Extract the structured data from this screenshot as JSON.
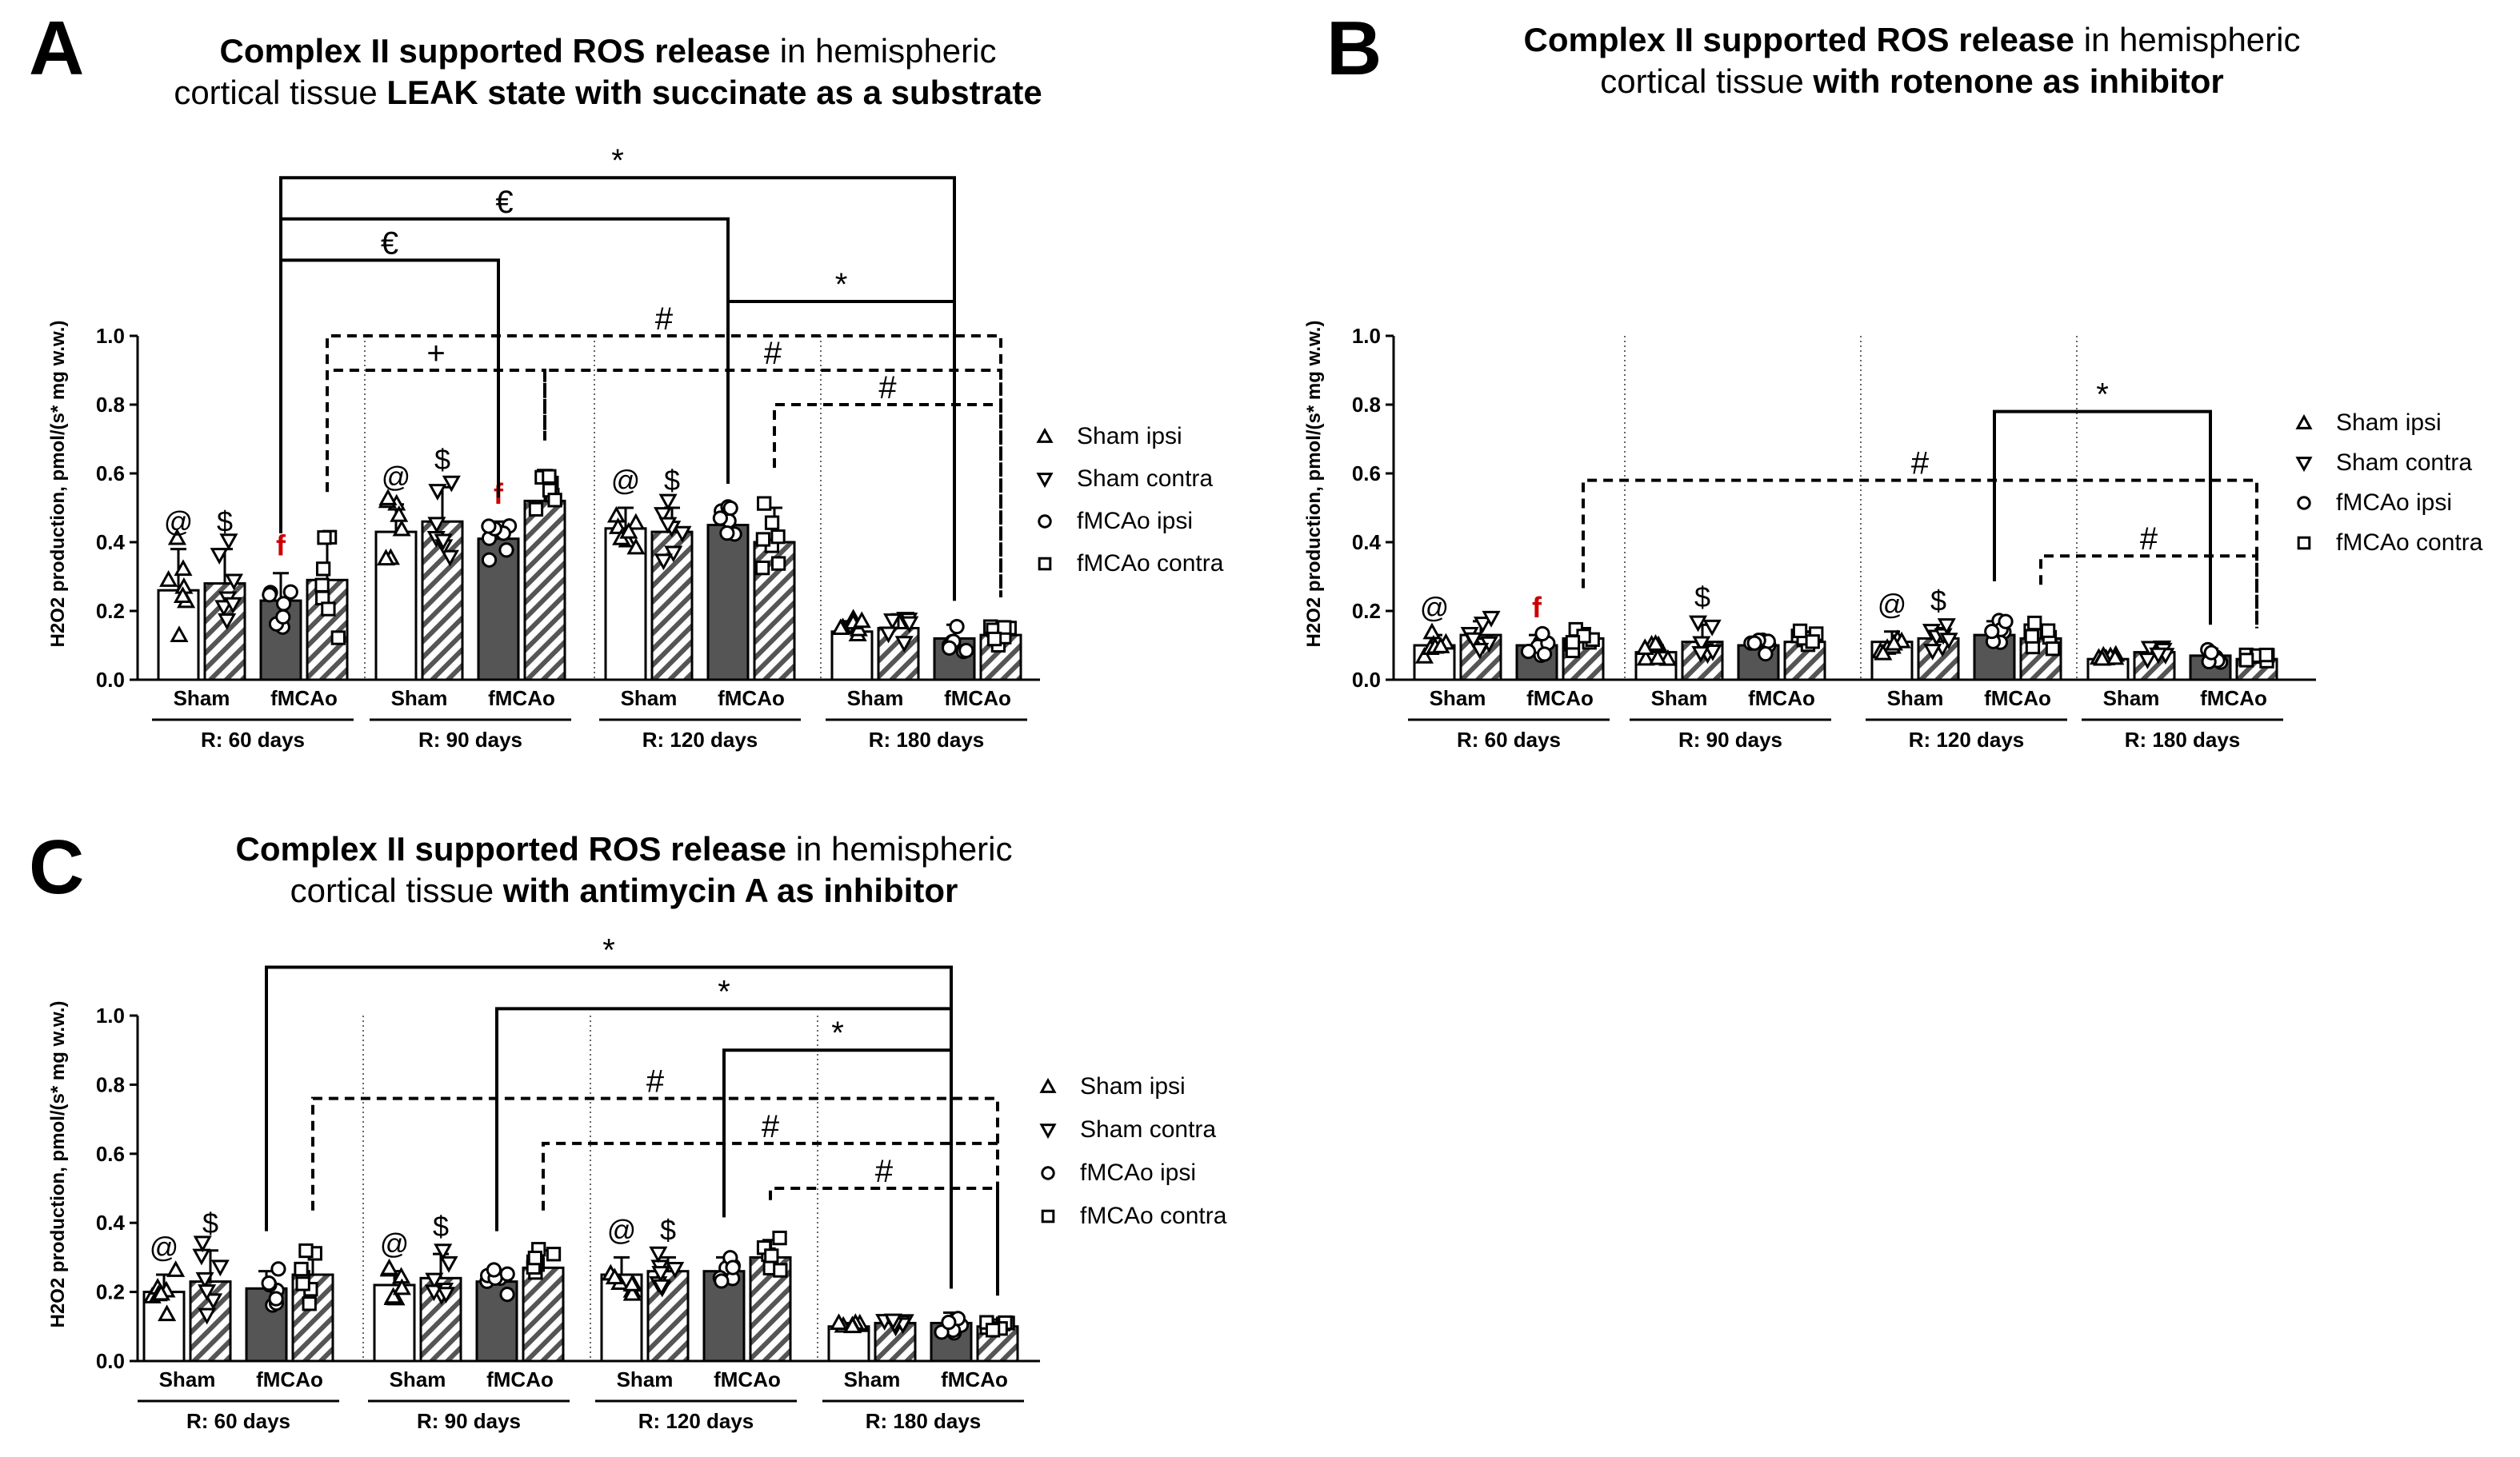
{
  "panel_titles": {
    "A": {
      "letter": "A",
      "bold1": "Complex II supported ROS release",
      "plain1": " in hemispheric",
      "plain2": "cortical tissue ",
      "bold2": "LEAK state with succinate as a substrate"
    },
    "B": {
      "letter": "B",
      "bold1": "Complex II supported ROS release",
      "plain1": " in hemispheric",
      "plain2": "cortical tissue ",
      "bold2": "with rotenone as inhibitor"
    },
    "C": {
      "letter": "C",
      "bold1": "Complex II supported ROS release",
      "plain1": " in hemispheric",
      "plain2": "cortical tissue ",
      "bold2": "with antimycin A as inhibitor"
    }
  },
  "colors": {
    "sham": "#ffffff",
    "fmcao": "#555555",
    "hatch": "#555555",
    "sig_red": "#cc0000",
    "stroke": "#000000"
  },
  "chart_data": [
    {
      "id": "A",
      "type": "bar",
      "title": "Complex II supported ROS release in hemispheric cortical tissue LEAK state with succinate as a substrate",
      "ylabel": "H2O2 production, pmol/(s* mg w.w.)",
      "ylim": [
        0,
        1.0
      ],
      "yticks": [
        "0.0",
        "0.2",
        "0.4",
        "0.6",
        "0.8",
        "1.0"
      ],
      "categories": [
        "R: 60 days",
        "R: 90 days",
        "R: 120 days",
        "R: 180 days"
      ],
      "sub_labels": [
        "Sham",
        "fMCAo"
      ],
      "legend": [
        "Sham ipsi",
        "Sham contra",
        "fMCAo ipsi",
        "fMCAo contra"
      ],
      "series": [
        {
          "name": "Sham ipsi",
          "values": [
            0.26,
            0.43,
            0.44,
            0.14
          ],
          "sd": [
            0.12,
            0.08,
            0.06,
            0.03
          ]
        },
        {
          "name": "Sham contra",
          "values": [
            0.28,
            0.46,
            0.43,
            0.15
          ],
          "sd": [
            0.1,
            0.1,
            0.07,
            0.04
          ]
        },
        {
          "name": "fMCAo ipsi",
          "values": [
            0.23,
            0.41,
            0.45,
            0.12
          ],
          "sd": [
            0.08,
            0.05,
            0.05,
            0.04
          ]
        },
        {
          "name": "fMCAo contra",
          "values": [
            0.29,
            0.52,
            0.4,
            0.13
          ],
          "sd": [
            0.14,
            0.09,
            0.1,
            0.04
          ]
        }
      ],
      "bar_marks": [
        {
          "g": 0,
          "s": 0,
          "text": "@"
        },
        {
          "g": 0,
          "s": 1,
          "text": "$"
        },
        {
          "g": 0,
          "s": 2,
          "text": "f",
          "red": true
        },
        {
          "g": 1,
          "s": 0,
          "text": "@"
        },
        {
          "g": 1,
          "s": 1,
          "text": "$"
        },
        {
          "g": 1,
          "s": 2,
          "text": "f",
          "red": true
        },
        {
          "g": 2,
          "s": 0,
          "text": "@"
        },
        {
          "g": 2,
          "s": 1,
          "text": "$"
        }
      ],
      "brackets": [
        {
          "from": [
            0,
            2
          ],
          "to": [
            3,
            2
          ],
          "level": 1.46,
          "symbol": "*",
          "dashed": false
        },
        {
          "from": [
            0,
            2
          ],
          "to": [
            2,
            2
          ],
          "level": 1.34,
          "symbol": "€",
          "dashed": false
        },
        {
          "from": [
            0,
            2
          ],
          "to": [
            1,
            2
          ],
          "level": 1.22,
          "symbol": "€",
          "dashed": false
        },
        {
          "from": [
            2,
            2
          ],
          "to": [
            3,
            2
          ],
          "level": 1.1,
          "symbol": "*",
          "dashed": false
        },
        {
          "from": [
            0,
            3
          ],
          "to": [
            3,
            3
          ],
          "level": 1.0,
          "symbol": "#",
          "dashed": true
        },
        {
          "from": [
            0,
            3
          ],
          "to": [
            1,
            3
          ],
          "level": 0.9,
          "symbol": "+",
          "dashed": true
        },
        {
          "from": [
            1,
            3
          ],
          "to": [
            3,
            3
          ],
          "level": 0.9,
          "symbol": "#",
          "dashed": true
        },
        {
          "from": [
            2,
            3
          ],
          "to": [
            3,
            3
          ],
          "level": 0.8,
          "symbol": "#",
          "dashed": true
        }
      ]
    },
    {
      "id": "B",
      "type": "bar",
      "title": "Complex II supported ROS release in hemispheric cortical tissue with rotenone as inhibitor",
      "ylabel": "H2O2 production, pmol/(s* mg w.w.)",
      "ylim": [
        0,
        1.0
      ],
      "yticks": [
        "0.0",
        "0.2",
        "0.4",
        "0.6",
        "0.8",
        "1.0"
      ],
      "categories": [
        "R: 60 days",
        "R: 90 days",
        "R: 120 days",
        "R: 180 days"
      ],
      "sub_labels": [
        "Sham",
        "fMCAo"
      ],
      "legend": [
        "Sham ipsi",
        "Sham contra",
        "fMCAo ipsi",
        "fMCAo contra"
      ],
      "series": [
        {
          "name": "Sham ipsi",
          "values": [
            0.1,
            0.08,
            0.11,
            0.06
          ],
          "sd": [
            0.03,
            0.02,
            0.03,
            0.01
          ]
        },
        {
          "name": "Sham contra",
          "values": [
            0.13,
            0.11,
            0.12,
            0.08
          ],
          "sd": [
            0.04,
            0.05,
            0.03,
            0.02
          ]
        },
        {
          "name": "fMCAo ipsi",
          "values": [
            0.1,
            0.1,
            0.13,
            0.07
          ],
          "sd": [
            0.03,
            0.02,
            0.04,
            0.02
          ]
        },
        {
          "name": "fMCAo contra",
          "values": [
            0.12,
            0.11,
            0.12,
            0.06
          ],
          "sd": [
            0.03,
            0.03,
            0.04,
            0.02
          ]
        }
      ],
      "bar_marks": [
        {
          "g": 0,
          "s": 0,
          "text": "@"
        },
        {
          "g": 0,
          "s": 2,
          "text": "f",
          "red": true
        },
        {
          "g": 1,
          "s": 1,
          "text": "$"
        },
        {
          "g": 2,
          "s": 0,
          "text": "@"
        },
        {
          "g": 2,
          "s": 1,
          "text": "$"
        }
      ],
      "brackets": [
        {
          "from": [
            2,
            2
          ],
          "to": [
            3,
            2
          ],
          "level": 0.78,
          "symbol": "*",
          "dashed": false
        },
        {
          "from": [
            0,
            3
          ],
          "to": [
            3,
            3
          ],
          "level": 0.58,
          "symbol": "#",
          "dashed": true
        },
        {
          "from": [
            2,
            3
          ],
          "to": [
            3,
            3
          ],
          "level": 0.36,
          "symbol": "#",
          "dashed": true
        }
      ]
    },
    {
      "id": "C",
      "type": "bar",
      "title": "Complex II supported ROS release in hemispheric cortical tissue with antimycin A as inhibitor",
      "ylabel": "H2O2 production, pmol/(s* mg w.w.)",
      "ylim": [
        0,
        1.0
      ],
      "yticks": [
        "0.0",
        "0.2",
        "0.4",
        "0.6",
        "0.8",
        "1.0"
      ],
      "categories": [
        "R: 60 days",
        "R: 90 days",
        "R: 120 days",
        "R: 180 days"
      ],
      "sub_labels": [
        "Sham",
        "fMCAo"
      ],
      "legend": [
        "Sham ipsi",
        "Sham contra",
        "fMCAo ipsi",
        "fMCAo contra"
      ],
      "series": [
        {
          "name": "Sham ipsi",
          "values": [
            0.2,
            0.22,
            0.25,
            0.1
          ],
          "sd": [
            0.05,
            0.04,
            0.05,
            0.01
          ]
        },
        {
          "name": "Sham contra",
          "values": [
            0.23,
            0.24,
            0.26,
            0.11
          ],
          "sd": [
            0.09,
            0.07,
            0.04,
            0.01
          ]
        },
        {
          "name": "fMCAo ipsi",
          "values": [
            0.21,
            0.23,
            0.26,
            0.11
          ],
          "sd": [
            0.05,
            0.03,
            0.04,
            0.03
          ]
        },
        {
          "name": "fMCAo contra",
          "values": [
            0.25,
            0.27,
            0.3,
            0.1
          ],
          "sd": [
            0.07,
            0.05,
            0.05,
            0.02
          ]
        }
      ],
      "bar_marks": [
        {
          "g": 0,
          "s": 0,
          "text": "@"
        },
        {
          "g": 0,
          "s": 1,
          "text": "$"
        },
        {
          "g": 1,
          "s": 0,
          "text": "@"
        },
        {
          "g": 1,
          "s": 1,
          "text": "$"
        },
        {
          "g": 2,
          "s": 0,
          "text": "@"
        },
        {
          "g": 2,
          "s": 1,
          "text": "$"
        }
      ],
      "brackets": [
        {
          "from": [
            0,
            2
          ],
          "to": [
            3,
            2
          ],
          "level": 1.14,
          "symbol": "*",
          "dashed": false
        },
        {
          "from": [
            1,
            2
          ],
          "to": [
            3,
            2
          ],
          "level": 1.02,
          "symbol": "*",
          "dashed": false
        },
        {
          "from": [
            2,
            2
          ],
          "to": [
            3,
            2
          ],
          "level": 0.9,
          "symbol": "*",
          "dashed": false
        },
        {
          "from": [
            0,
            3
          ],
          "to": [
            3,
            3
          ],
          "level": 0.76,
          "symbol": "#",
          "dashed": true
        },
        {
          "from": [
            1,
            3
          ],
          "to": [
            3,
            3
          ],
          "level": 0.63,
          "symbol": "#",
          "dashed": true
        },
        {
          "from": [
            2,
            3
          ],
          "to": [
            3,
            3
          ],
          "level": 0.5,
          "symbol": "#",
          "dashed": true
        }
      ]
    }
  ]
}
